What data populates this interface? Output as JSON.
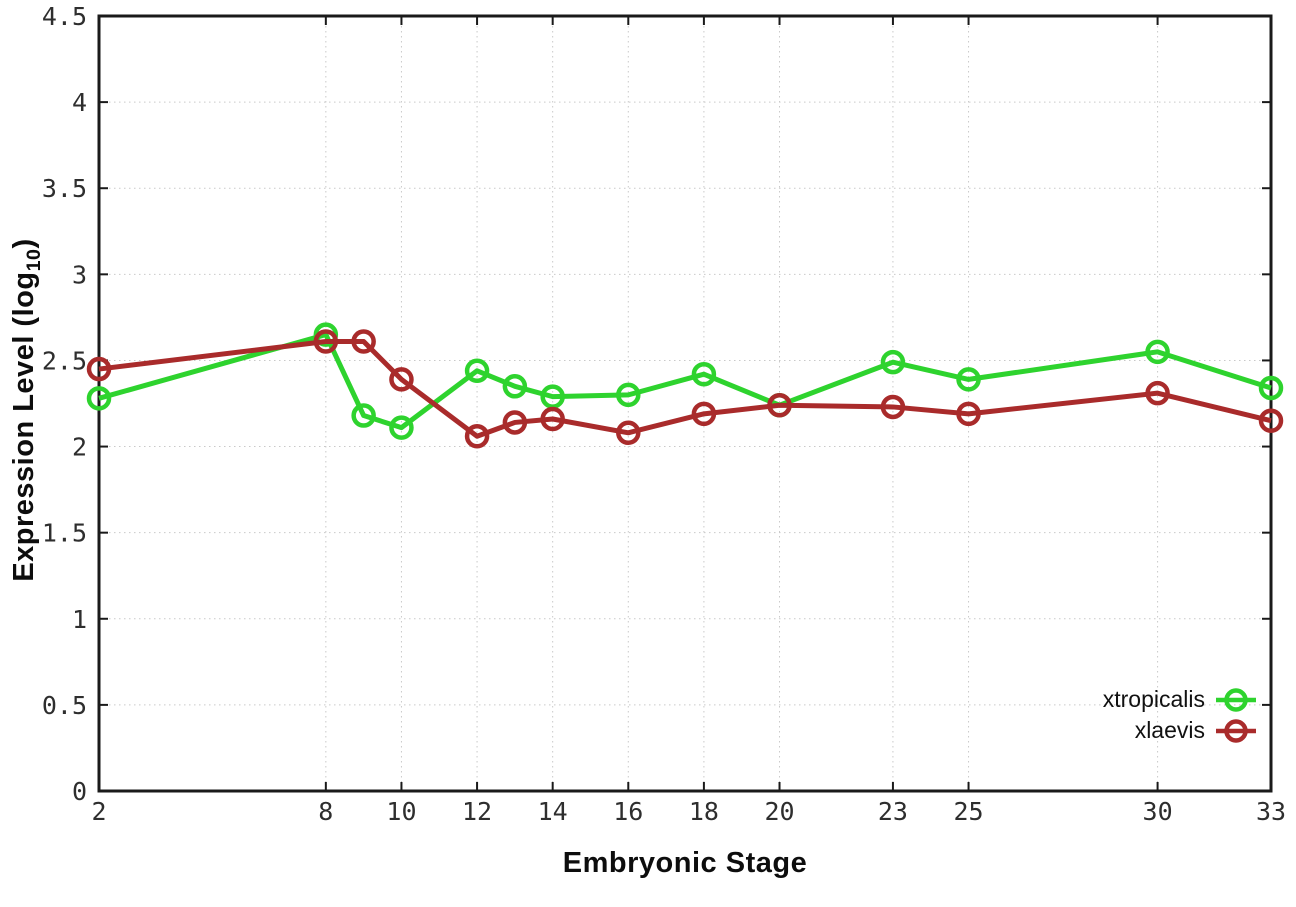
{
  "chart_data": {
    "type": "line",
    "xlabel": "Embryonic Stage",
    "ylabel_prefix": "Expression Level (log",
    "ylabel_sub": "10",
    "ylabel_suffix": ")",
    "x": [
      2,
      8,
      9,
      10,
      12,
      13,
      14,
      16,
      18,
      20,
      23,
      25,
      30,
      33
    ],
    "series": [
      {
        "name": "xtropicalis",
        "color": "#2ed32e",
        "values": [
          2.28,
          2.65,
          2.18,
          2.11,
          2.44,
          2.35,
          2.29,
          2.3,
          2.42,
          2.24,
          2.49,
          2.39,
          2.55,
          2.34
        ]
      },
      {
        "name": "xlaevis",
        "color": "#a92b2b",
        "values": [
          2.45,
          2.61,
          2.61,
          2.39,
          2.06,
          2.14,
          2.16,
          2.08,
          2.19,
          2.24,
          2.23,
          2.19,
          2.31,
          2.15
        ]
      }
    ],
    "x_ticks": [
      2,
      8,
      10,
      12,
      14,
      16,
      18,
      20,
      23,
      25,
      30,
      33
    ],
    "y_ticks": [
      0,
      0.5,
      1,
      1.5,
      2,
      2.5,
      3,
      3.5,
      4,
      4.5
    ],
    "xlim": [
      2,
      33
    ],
    "ylim": [
      0,
      4.5
    ],
    "grid": true,
    "legend_position": "bottom-right",
    "marker": "open-circle"
  }
}
